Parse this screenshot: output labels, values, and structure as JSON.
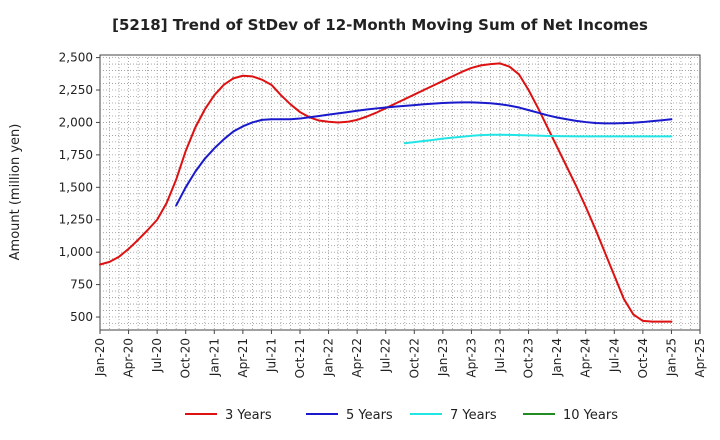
{
  "chart_data": {
    "type": "line",
    "title": "[5218]  Trend of StDev of 12-Month Moving Sum of Net Incomes",
    "ylabel": "Amount (million yen)",
    "xlabel": "",
    "x_ticks": [
      "Jan-20",
      "Apr-20",
      "Jul-20",
      "Oct-20",
      "Jan-21",
      "Apr-21",
      "Jul-21",
      "Oct-21",
      "Jan-22",
      "Apr-22",
      "Jul-22",
      "Oct-22",
      "Jan-23",
      "Apr-23",
      "Jul-23",
      "Oct-23",
      "Jan-24",
      "Apr-24",
      "Jul-24",
      "Oct-24",
      "Jan-25",
      "Apr-25"
    ],
    "y_ticks": [
      "500",
      "750",
      "1,000",
      "1,250",
      "1,500",
      "1,750",
      "2,000",
      "2,250",
      "2,500"
    ],
    "y_tick_values": [
      500,
      750,
      1000,
      1250,
      1500,
      1750,
      2000,
      2250,
      2500
    ],
    "ylim": [
      400,
      2520
    ],
    "x_domain": [
      "2020-01",
      "2025-04"
    ],
    "grid": true,
    "legend_position": "bottom",
    "series": [
      {
        "name": "3 Years",
        "color": "#dd1111",
        "points": [
          [
            "2020-01",
            905
          ],
          [
            "2020-02",
            925
          ],
          [
            "2020-03",
            965
          ],
          [
            "2020-04",
            1025
          ],
          [
            "2020-05",
            1095
          ],
          [
            "2020-06",
            1170
          ],
          [
            "2020-07",
            1250
          ],
          [
            "2020-08",
            1380
          ],
          [
            "2020-09",
            1560
          ],
          [
            "2020-10",
            1780
          ],
          [
            "2020-11",
            1960
          ],
          [
            "2020-12",
            2100
          ],
          [
            "2021-01",
            2210
          ],
          [
            "2021-02",
            2290
          ],
          [
            "2021-03",
            2340
          ],
          [
            "2021-04",
            2360
          ],
          [
            "2021-05",
            2355
          ],
          [
            "2021-06",
            2330
          ],
          [
            "2021-07",
            2290
          ],
          [
            "2021-08",
            2210
          ],
          [
            "2021-09",
            2140
          ],
          [
            "2021-10",
            2080
          ],
          [
            "2021-11",
            2040
          ],
          [
            "2021-12",
            2015
          ],
          [
            "2022-01",
            2005
          ],
          [
            "2022-02",
            2000
          ],
          [
            "2022-03",
            2005
          ],
          [
            "2022-04",
            2020
          ],
          [
            "2022-05",
            2045
          ],
          [
            "2022-06",
            2075
          ],
          [
            "2022-07",
            2110
          ],
          [
            "2022-08",
            2145
          ],
          [
            "2022-09",
            2180
          ],
          [
            "2022-10",
            2215
          ],
          [
            "2022-11",
            2250
          ],
          [
            "2022-12",
            2285
          ],
          [
            "2023-01",
            2320
          ],
          [
            "2023-02",
            2355
          ],
          [
            "2023-03",
            2390
          ],
          [
            "2023-04",
            2420
          ],
          [
            "2023-05",
            2440
          ],
          [
            "2023-06",
            2450
          ],
          [
            "2023-07",
            2455
          ],
          [
            "2023-08",
            2430
          ],
          [
            "2023-09",
            2370
          ],
          [
            "2023-10",
            2250
          ],
          [
            "2023-11",
            2110
          ],
          [
            "2023-12",
            1960
          ],
          [
            "2024-01",
            1810
          ],
          [
            "2024-02",
            1660
          ],
          [
            "2024-03",
            1510
          ],
          [
            "2024-04",
            1350
          ],
          [
            "2024-05",
            1180
          ],
          [
            "2024-06",
            1000
          ],
          [
            "2024-07",
            820
          ],
          [
            "2024-08",
            640
          ],
          [
            "2024-09",
            520
          ],
          [
            "2024-10",
            470
          ],
          [
            "2024-11",
            465
          ],
          [
            "2024-12",
            465
          ],
          [
            "2025-01",
            465
          ]
        ]
      },
      {
        "name": "5 Years",
        "color": "#1a1acc",
        "points": [
          [
            "2020-09",
            1360
          ],
          [
            "2020-10",
            1500
          ],
          [
            "2020-11",
            1620
          ],
          [
            "2020-12",
            1720
          ],
          [
            "2021-01",
            1800
          ],
          [
            "2021-02",
            1870
          ],
          [
            "2021-03",
            1930
          ],
          [
            "2021-04",
            1970
          ],
          [
            "2021-05",
            2000
          ],
          [
            "2021-06",
            2020
          ],
          [
            "2021-07",
            2025
          ],
          [
            "2021-08",
            2025
          ],
          [
            "2021-09",
            2025
          ],
          [
            "2021-10",
            2030
          ],
          [
            "2021-11",
            2040
          ],
          [
            "2021-12",
            2050
          ],
          [
            "2022-01",
            2060
          ],
          [
            "2022-02",
            2070
          ],
          [
            "2022-03",
            2080
          ],
          [
            "2022-04",
            2090
          ],
          [
            "2022-05",
            2100
          ],
          [
            "2022-06",
            2108
          ],
          [
            "2022-07",
            2115
          ],
          [
            "2022-08",
            2122
          ],
          [
            "2022-09",
            2128
          ],
          [
            "2022-10",
            2134
          ],
          [
            "2022-11",
            2140
          ],
          [
            "2022-12",
            2145
          ],
          [
            "2023-01",
            2150
          ],
          [
            "2023-02",
            2153
          ],
          [
            "2023-03",
            2155
          ],
          [
            "2023-04",
            2155
          ],
          [
            "2023-05",
            2152
          ],
          [
            "2023-06",
            2148
          ],
          [
            "2023-07",
            2140
          ],
          [
            "2023-08",
            2130
          ],
          [
            "2023-09",
            2115
          ],
          [
            "2023-10",
            2095
          ],
          [
            "2023-11",
            2075
          ],
          [
            "2023-12",
            2055
          ],
          [
            "2024-01",
            2038
          ],
          [
            "2024-02",
            2025
          ],
          [
            "2024-03",
            2012
          ],
          [
            "2024-04",
            2003
          ],
          [
            "2024-05",
            1996
          ],
          [
            "2024-06",
            1993
          ],
          [
            "2024-07",
            1993
          ],
          [
            "2024-08",
            1995
          ],
          [
            "2024-09",
            1998
          ],
          [
            "2024-10",
            2003
          ],
          [
            "2024-11",
            2010
          ],
          [
            "2024-12",
            2017
          ],
          [
            "2025-01",
            2025
          ]
        ]
      },
      {
        "name": "7 Years",
        "color": "#22e5e5",
        "points": [
          [
            "2022-09",
            1840
          ],
          [
            "2022-10",
            1848
          ],
          [
            "2022-11",
            1857
          ],
          [
            "2022-12",
            1866
          ],
          [
            "2023-01",
            1875
          ],
          [
            "2023-02",
            1883
          ],
          [
            "2023-03",
            1890
          ],
          [
            "2023-04",
            1897
          ],
          [
            "2023-05",
            1902
          ],
          [
            "2023-06",
            1905
          ],
          [
            "2023-07",
            1905
          ],
          [
            "2023-08",
            1904
          ],
          [
            "2023-09",
            1902
          ],
          [
            "2023-10",
            1900
          ],
          [
            "2023-11",
            1898
          ],
          [
            "2023-12",
            1896
          ],
          [
            "2024-01",
            1895
          ],
          [
            "2024-02",
            1894
          ],
          [
            "2024-03",
            1893
          ],
          [
            "2024-04",
            1893
          ],
          [
            "2024-05",
            1893
          ],
          [
            "2024-06",
            1893
          ],
          [
            "2024-07",
            1893
          ],
          [
            "2024-08",
            1893
          ],
          [
            "2024-09",
            1893
          ],
          [
            "2024-10",
            1893
          ],
          [
            "2024-11",
            1893
          ],
          [
            "2024-12",
            1893
          ],
          [
            "2025-01",
            1893
          ]
        ]
      },
      {
        "name": "10 Years",
        "color": "#228b22",
        "points": []
      }
    ]
  }
}
